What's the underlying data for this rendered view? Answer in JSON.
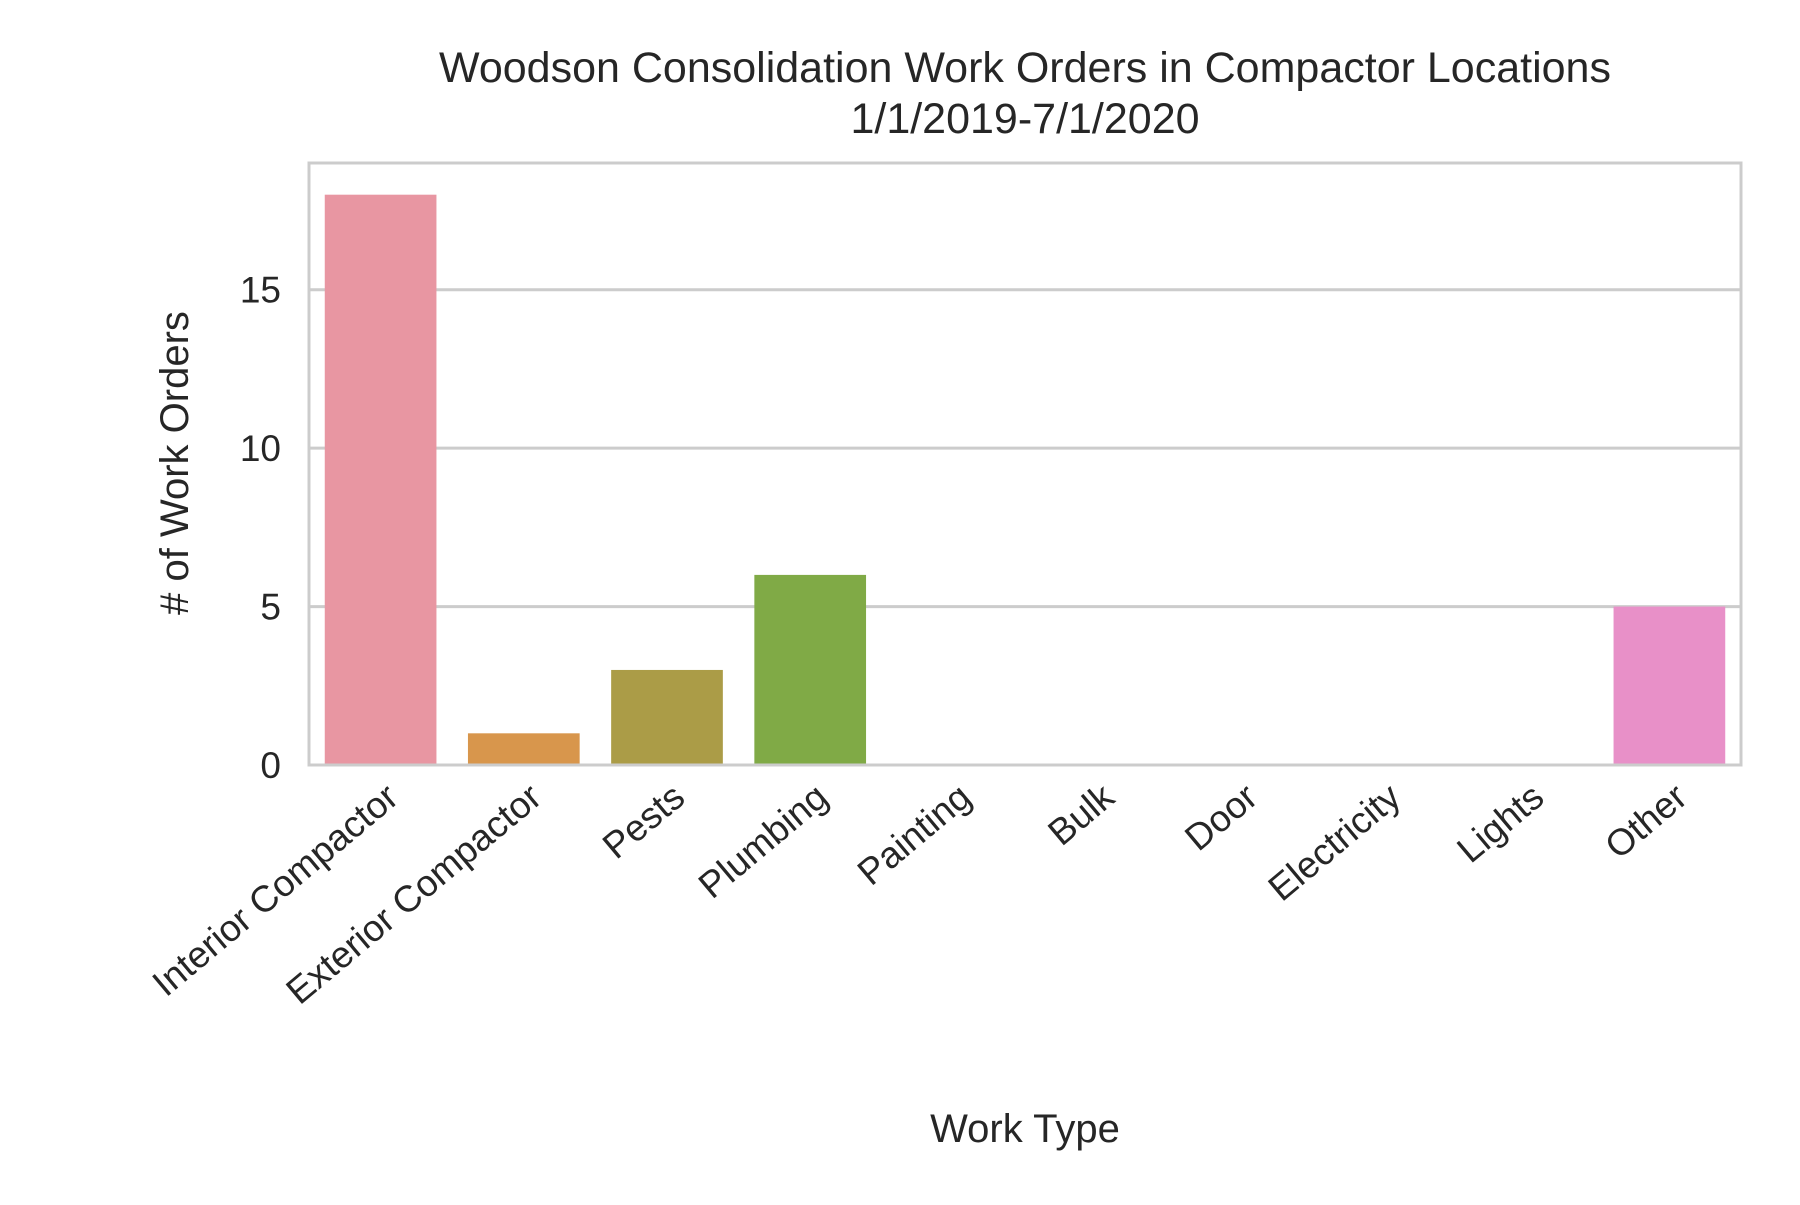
{
  "chart_data": {
    "type": "bar",
    "title": "Woodson Consolidation Work Orders in Compactor Locations",
    "subtitle": "1/1/2019-7/1/2020",
    "xlabel": "Work Type",
    "ylabel": "# of Work Orders",
    "categories": [
      "Interior Compactor",
      "Exterior Compactor",
      "Pests",
      "Plumbing",
      "Painting",
      "Bulk",
      "Door",
      "Electricity",
      "Lights",
      "Other"
    ],
    "values": [
      18,
      1,
      3,
      6,
      0,
      0,
      0,
      0,
      0,
      5
    ],
    "colors": [
      "#e896a2",
      "#d8964c",
      "#ab9c47",
      "#80aa46",
      "#5aa86f",
      "#5aa89c",
      "#5aa0bf",
      "#8c9be0",
      "#c98ce0",
      "#e890c8"
    ],
    "ylim": [
      0,
      19
    ],
    "yticks": [
      0,
      5,
      10,
      15
    ],
    "grid": true,
    "grid_axis": "y",
    "xtick_rotation_deg": 40,
    "style": {
      "grid_color": "#cccccc",
      "spine_color": "#cccccc",
      "text_color": "#262626"
    }
  }
}
